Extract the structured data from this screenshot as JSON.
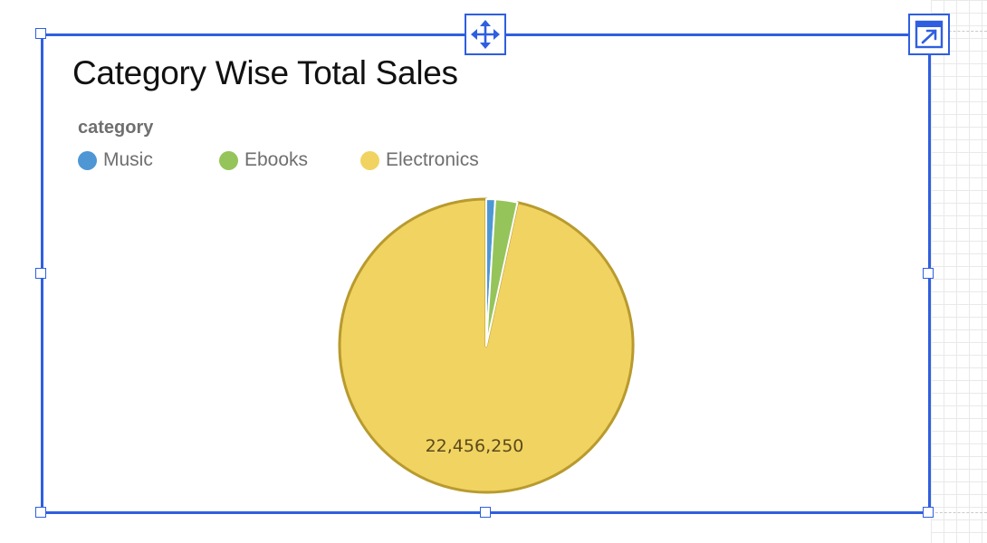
{
  "widget": {
    "title": "Category Wise Total Sales",
    "legend_title": "category",
    "move_icon": "move-icon",
    "open_icon": "open-in-new-icon"
  },
  "chart_data": {
    "type": "pie",
    "title": "Category Wise Total Sales",
    "legend_title": "category",
    "legend_placement": "top-left",
    "categories": [
      "Music",
      "Ebooks",
      "Electronics"
    ],
    "values": [
      227000,
      567000,
      22456250
    ],
    "colors": [
      "#4e97d4",
      "#95c45a",
      "#f1d362"
    ],
    "stroke_colors": [
      "#ffffff",
      "#ffffff",
      "#b89a2e"
    ],
    "data_labels": [
      "",
      "",
      "22,456,250"
    ]
  }
}
